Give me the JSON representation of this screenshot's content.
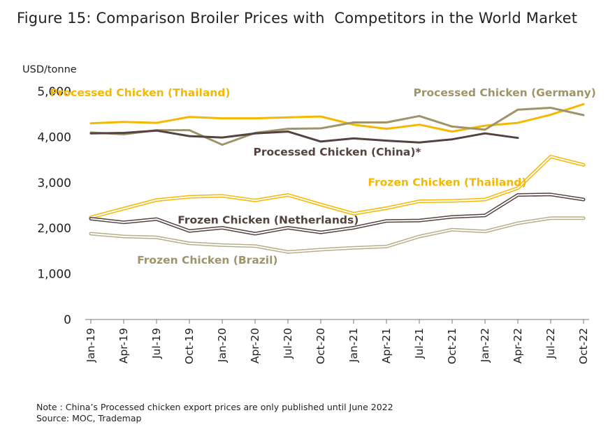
{
  "title": "Figure 15: Comparison Broiler Prices with  Competitors in the World Market",
  "notes": {
    "note": "Note : China’s Processed chicken export prices are only published until June 2022",
    "source": "Source:  MOC, Trademap"
  },
  "chart_data": {
    "type": "line",
    "ylabel": "USD/tonne",
    "ylim": [
      0,
      5000
    ],
    "yticks": [
      "0",
      "1,000",
      "2,000",
      "3,000",
      "4,000",
      "5,000"
    ],
    "ytick_values": [
      0,
      1000,
      2000,
      3000,
      4000,
      5000
    ],
    "categories": [
      "Jan-19",
      "Apr-19",
      "Jul-19",
      "Oct-19",
      "Jan-20",
      "Apr-20",
      "Jul-20",
      "Oct-20",
      "Jan-21",
      "Apr-21",
      "Jul-21",
      "Oct-21",
      "Jan-22",
      "Apr-22",
      "Jul-22",
      "Oct-22"
    ],
    "grid": false,
    "legend": "inline labels",
    "series": [
      {
        "name": "Processed Chicken (Thailand)",
        "color": "#F5B800",
        "style": "solid",
        "values": [
          4300,
          4330,
          4310,
          4440,
          4410,
          4410,
          4430,
          4450,
          4270,
          4180,
          4270,
          4120,
          4250,
          4310,
          4490,
          4720
        ]
      },
      {
        "name": "Processed Chicken (Germany)",
        "color": "#9E9468",
        "style": "solid",
        "values": [
          4100,
          4060,
          4150,
          4150,
          3830,
          4090,
          4180,
          4190,
          4320,
          4320,
          4460,
          4230,
          4160,
          4600,
          4640,
          4480
        ]
      },
      {
        "name": "Processed Chicken (China)*",
        "color": "#54433F",
        "style": "solid",
        "values": [
          4080,
          4090,
          4140,
          4020,
          3990,
          4080,
          4120,
          3900,
          3970,
          3920,
          3880,
          3950,
          4080,
          3980,
          null,
          null
        ]
      },
      {
        "name": "Frozen Chicken (Thailand)",
        "color": "#F5B800",
        "style": "double",
        "values": [
          2240,
          2430,
          2620,
          2690,
          2710,
          2610,
          2730,
          2520,
          2320,
          2440,
          2590,
          2600,
          2630,
          2880,
          3570,
          3390
        ]
      },
      {
        "name": "Frozen Chicken (Netherlands)",
        "color": "#54433F",
        "style": "double",
        "values": [
          2210,
          2130,
          2200,
          1940,
          2010,
          1880,
          2010,
          1910,
          2010,
          2160,
          2170,
          2250,
          2280,
          2730,
          2740,
          2630
        ]
      },
      {
        "name": "Frozen Chicken (Brazil)",
        "color": "#B7AE87",
        "style": "double",
        "values": [
          1880,
          1820,
          1800,
          1670,
          1630,
          1610,
          1480,
          1530,
          1570,
          1600,
          1820,
          1970,
          1930,
          2110,
          2220,
          2220
        ]
      }
    ],
    "annotations": [
      {
        "text": "Processed Chicken (Thailand)",
        "color": "#F5B800",
        "at_x": 1.5,
        "at_y": 4890
      },
      {
        "text": "Processed Chicken (Germany)",
        "color": "#9E9468",
        "at_x": 12.6,
        "at_y": 4890
      },
      {
        "text": "Processed Chicken (China)*",
        "color": "#54433F",
        "at_x": 7.5,
        "at_y": 3590
      },
      {
        "text": "Frozen Chicken (Thailand)",
        "color": "#F5B800",
        "at_x": 10.85,
        "at_y": 2930
      },
      {
        "text": "Frozen Chicken (Netherlands)",
        "color": "#54433F",
        "at_x": 5.4,
        "at_y": 2100
      },
      {
        "text": "Frozen Chicken (Brazil)",
        "color": "#9E9468",
        "at_x": 3.55,
        "at_y": 1220
      }
    ]
  }
}
